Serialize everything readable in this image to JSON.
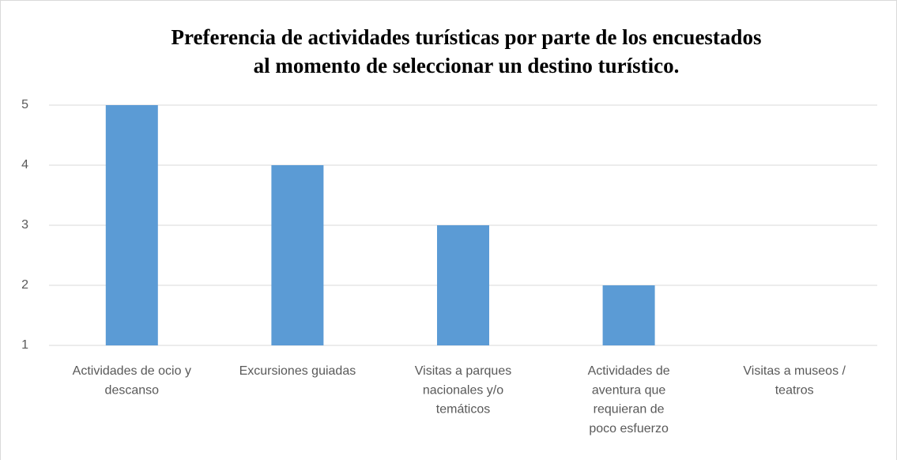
{
  "chart_data": {
    "type": "bar",
    "title": [
      "Preferencia de actividades turísticas por parte de los encuestados",
      "al momento de seleccionar un destino turístico."
    ],
    "categories": [
      [
        "Actividades de ocio y",
        "descanso"
      ],
      [
        "Excursiones guiadas"
      ],
      [
        "Visitas a parques",
        "nacionales y/o",
        "temáticos"
      ],
      [
        "Actividades de",
        "aventura que",
        "requieran de",
        "poco esfuerzo"
      ],
      [
        "Visitas a museos /",
        "teatros"
      ]
    ],
    "values": [
      5,
      4,
      3,
      2,
      1
    ],
    "color": "#5b9bd5",
    "ylim": [
      1,
      5
    ],
    "yticks": [
      1,
      2,
      3,
      4,
      5
    ],
    "grid": true
  }
}
